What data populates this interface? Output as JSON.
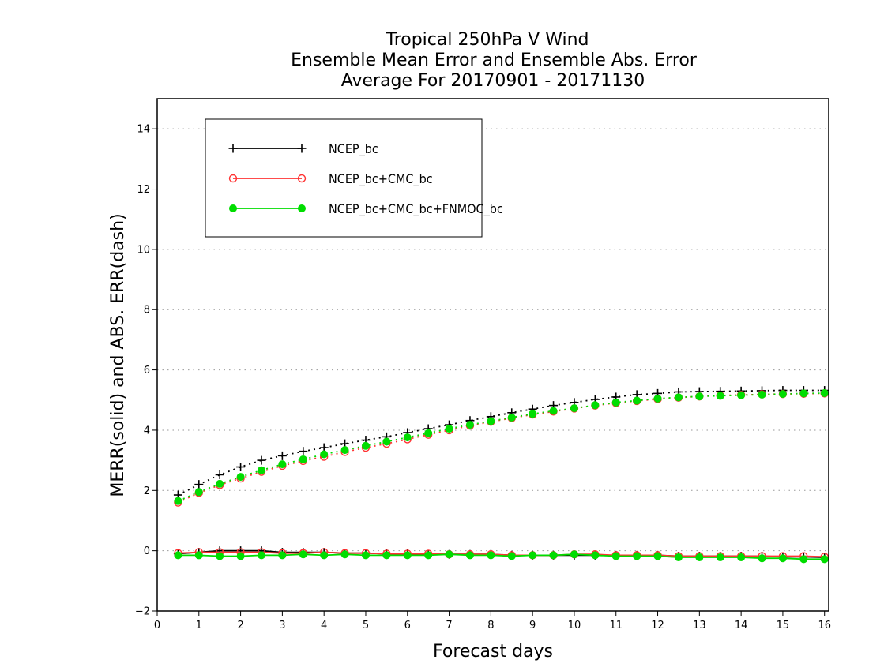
{
  "chart_data": {
    "type": "line",
    "title_lines": [
      "Tropical 250hPa V Wind",
      "Ensemble Mean Error and Ensemble Abs. Error",
      "Average For 20170901 - 20171130"
    ],
    "xlabel": "Forecast days",
    "ylabel": "MERR(solid) and ABS. ERR(dash)",
    "xlim": [
      0,
      16.1
    ],
    "ylim": [
      -2,
      15
    ],
    "x_ticks": [
      0,
      1,
      2,
      3,
      4,
      5,
      6,
      7,
      8,
      9,
      10,
      11,
      12,
      13,
      14,
      15,
      16
    ],
    "y_ticks": [
      -2,
      0,
      2,
      4,
      6,
      8,
      10,
      12,
      14
    ],
    "grid": "horizontal dotted",
    "legend_position": "top-left",
    "x": [
      0.5,
      1,
      1.5,
      2,
      2.5,
      3,
      3.5,
      4,
      4.5,
      5,
      5.5,
      6,
      6.5,
      7,
      7.5,
      8,
      8.5,
      9,
      9.5,
      10,
      10.5,
      11,
      11.5,
      12,
      12.5,
      13,
      13.5,
      14,
      14.5,
      15,
      15.5,
      16
    ],
    "series": [
      {
        "name": "NCEP_bc",
        "color": "#000000",
        "marker": "plus",
        "merr": [
          -0.1,
          -0.05,
          0.0,
          0.0,
          0.0,
          -0.05,
          -0.05,
          -0.05,
          -0.08,
          -0.08,
          -0.1,
          -0.1,
          -0.12,
          -0.12,
          -0.12,
          -0.12,
          -0.15,
          -0.15,
          -0.15,
          -0.15,
          -0.15,
          -0.15,
          -0.15,
          -0.15,
          -0.18,
          -0.18,
          -0.18,
          -0.18,
          -0.18,
          -0.2,
          -0.2,
          -0.22
        ],
        "abs_err": [
          1.85,
          2.2,
          2.52,
          2.78,
          3.0,
          3.15,
          3.3,
          3.42,
          3.55,
          3.67,
          3.78,
          3.92,
          4.05,
          4.18,
          4.32,
          4.45,
          4.58,
          4.7,
          4.82,
          4.92,
          5.02,
          5.1,
          5.18,
          5.22,
          5.27,
          5.28,
          5.29,
          5.3,
          5.31,
          5.32,
          5.32,
          5.32
        ]
      },
      {
        "name": "NCEP_bc+CMC_bc",
        "color": "#ff3333",
        "marker": "open-circle",
        "merr": [
          -0.08,
          -0.05,
          -0.05,
          -0.05,
          -0.05,
          -0.08,
          -0.08,
          -0.05,
          -0.08,
          -0.08,
          -0.1,
          -0.1,
          -0.1,
          -0.12,
          -0.12,
          -0.12,
          -0.15,
          -0.15,
          -0.15,
          -0.12,
          -0.12,
          -0.15,
          -0.15,
          -0.15,
          -0.18,
          -0.18,
          -0.18,
          -0.18,
          -0.18,
          -0.18,
          -0.18,
          -0.2
        ],
        "abs_err": [
          1.6,
          1.92,
          2.18,
          2.4,
          2.62,
          2.82,
          2.98,
          3.12,
          3.28,
          3.42,
          3.55,
          3.7,
          3.85,
          4.0,
          4.15,
          4.28,
          4.4,
          4.52,
          4.62,
          4.72,
          4.82,
          4.9,
          4.97,
          5.03,
          5.08,
          5.12,
          5.15,
          5.17,
          5.19,
          5.2,
          5.21,
          5.22
        ]
      },
      {
        "name": "NCEP_bc+CMC_bc+FNMOC_bc",
        "color": "#00dd00",
        "marker": "filled-circle",
        "merr": [
          -0.15,
          -0.15,
          -0.18,
          -0.18,
          -0.15,
          -0.15,
          -0.12,
          -0.15,
          -0.12,
          -0.15,
          -0.15,
          -0.15,
          -0.15,
          -0.12,
          -0.15,
          -0.15,
          -0.18,
          -0.15,
          -0.15,
          -0.12,
          -0.15,
          -0.18,
          -0.18,
          -0.18,
          -0.22,
          -0.22,
          -0.22,
          -0.22,
          -0.25,
          -0.25,
          -0.28,
          -0.28
        ],
        "abs_err": [
          1.65,
          1.95,
          2.22,
          2.45,
          2.67,
          2.87,
          3.03,
          3.2,
          3.34,
          3.48,
          3.62,
          3.76,
          3.9,
          4.05,
          4.18,
          4.3,
          4.42,
          4.54,
          4.64,
          4.73,
          4.83,
          4.92,
          4.98,
          5.05,
          5.09,
          5.12,
          5.14,
          5.16,
          5.18,
          5.2,
          5.22,
          5.23
        ]
      }
    ]
  }
}
